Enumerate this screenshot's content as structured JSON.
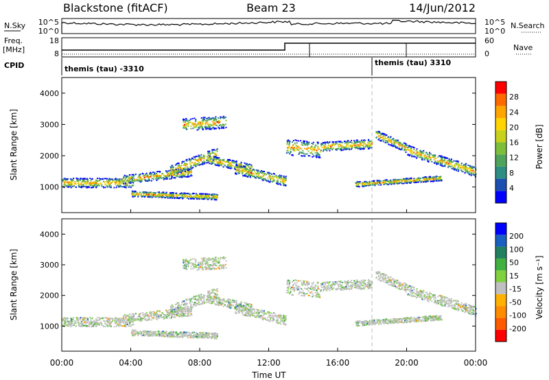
{
  "header": {
    "station": "Blackstone (fitACF)",
    "beam": "Beam 23",
    "date": "14/Jun/2012"
  },
  "strip_labels": {
    "nsky": "N.Sky",
    "nsky_ticks": [
      "10^5",
      "10^0"
    ],
    "nsearch": "N.Search",
    "nsearch_ticks": [
      "10^5",
      "10^0"
    ],
    "freq_line1": "Freq.",
    "freq_line2": "[MHz]",
    "freq_ticks": [
      "18",
      "8"
    ],
    "nave": "Nave",
    "nave_ticks": [
      "60",
      "0"
    ],
    "cpid": "CPID",
    "cpid_segments": [
      {
        "label": "themis (tau) -3310",
        "start_hour": 0
      },
      {
        "label": "themis (tau) 3310",
        "start_hour": 18
      }
    ]
  },
  "chart_data": [
    {
      "type": "heatmap",
      "quantity": "Power",
      "ylabel": "Slant Range [km]",
      "ylim": [
        180,
        4500
      ],
      "y_ticks": [
        1000,
        2000,
        3000,
        4000
      ],
      "colorbar_label": "Power [dB]",
      "colorbar_ticks": [
        "28",
        "24",
        "20",
        "16",
        "12",
        "8",
        "4"
      ],
      "colorbar_colors": [
        "#0000ff",
        "#1d4fb0",
        "#2e8e84",
        "#4fa35a",
        "#7dbe3a",
        "#c8d21e",
        "#ffd400",
        "#ffa500",
        "#ff6a00",
        "#ff0000"
      ],
      "echo_bands": [
        {
          "start": 0.0,
          "end": 4.2,
          "from": 1150,
          "to": 1150,
          "width": 150
        },
        {
          "start": 3.5,
          "end": 7.5,
          "from": 1250,
          "to": 1500,
          "width": 140
        },
        {
          "start": 6.2,
          "end": 9.0,
          "from": 1500,
          "to": 2100,
          "width": 180
        },
        {
          "start": 7.0,
          "end": 9.5,
          "from": 3000,
          "to": 3100,
          "width": 200
        },
        {
          "start": 8.5,
          "end": 11.0,
          "from": 1900,
          "to": 1600,
          "width": 140
        },
        {
          "start": 10.0,
          "end": 13.0,
          "from": 1600,
          "to": 1200,
          "width": 160
        },
        {
          "start": 4.0,
          "end": 9.0,
          "from": 800,
          "to": 700,
          "width": 90
        },
        {
          "start": 13.0,
          "end": 15.0,
          "from": 2300,
          "to": 2200,
          "width": 250
        },
        {
          "start": 15.0,
          "end": 18.0,
          "from": 2300,
          "to": 2400,
          "width": 150
        },
        {
          "start": 18.2,
          "end": 20.0,
          "from": 2700,
          "to": 2250,
          "width": 140
        },
        {
          "start": 20.0,
          "end": 24.0,
          "from": 2200,
          "to": 1500,
          "width": 160
        },
        {
          "start": 17.0,
          "end": 22.0,
          "from": 1100,
          "to": 1300,
          "width": 80
        }
      ]
    },
    {
      "type": "heatmap",
      "quantity": "Velocity",
      "ylabel": "Slant Range [km]",
      "xlabel": "Time UT",
      "ylim": [
        180,
        4500
      ],
      "y_ticks": [
        1000,
        2000,
        3000,
        4000
      ],
      "x_ticks": [
        "00:00",
        "04:00",
        "08:00",
        "12:00",
        "16:00",
        "20:00",
        "00:00"
      ],
      "colorbar_label": "Velocity [m s⁻¹]",
      "colorbar_ticks": [
        "200",
        "100",
        "50",
        "15",
        "-15",
        "-50",
        "-100",
        "-200"
      ],
      "colorbar_colors": [
        "#ff0000",
        "#ff5a00",
        "#ff8c00",
        "#ffb000",
        "#c0c0c0",
        "#80d040",
        "#40b040",
        "#208060",
        "#1a60c0",
        "#0000ff"
      ]
    }
  ]
}
